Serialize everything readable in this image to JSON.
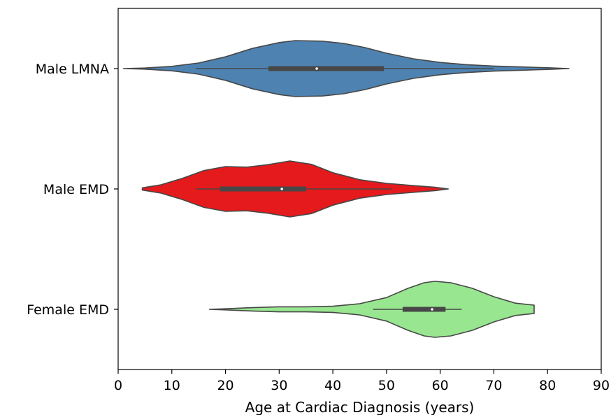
{
  "chart_data": {
    "type": "violin",
    "orientation": "horizontal",
    "title": "",
    "xlabel": "Age at Cardiac Diagnosis (years)",
    "ylabel": "",
    "xlim": [
      0,
      90
    ],
    "xticks": [
      0,
      10,
      20,
      30,
      40,
      50,
      60,
      70,
      80,
      90
    ],
    "grid": false,
    "legend": "none",
    "categories": [
      "Male LMNA",
      "Male EMD",
      "Female EMD"
    ],
    "series": [
      {
        "category": "Male LMNA",
        "color": "#4e82b1",
        "min": 1,
        "max": 84,
        "whisker": [
          14.5,
          70
        ],
        "quartiles": [
          28,
          49.5
        ],
        "median": 37,
        "density": [
          [
            1,
            0.0
          ],
          [
            5,
            0.02
          ],
          [
            10,
            0.08
          ],
          [
            15,
            0.2
          ],
          [
            20,
            0.42
          ],
          [
            25,
            0.72
          ],
          [
            30,
            0.93
          ],
          [
            33,
            1.0
          ],
          [
            38,
            0.98
          ],
          [
            42,
            0.9
          ],
          [
            46,
            0.75
          ],
          [
            50,
            0.55
          ],
          [
            55,
            0.35
          ],
          [
            60,
            0.22
          ],
          [
            65,
            0.14
          ],
          [
            70,
            0.09
          ],
          [
            75,
            0.06
          ],
          [
            80,
            0.03
          ],
          [
            84,
            0.0
          ]
        ]
      },
      {
        "category": "Male EMD",
        "color": "#e41a1c",
        "min": 4.5,
        "max": 61.5,
        "whisker": [
          14.5,
          51
        ],
        "quartiles": [
          19,
          35
        ],
        "median": 30.5,
        "density": [
          [
            4.5,
            0.04
          ],
          [
            8,
            0.15
          ],
          [
            12,
            0.38
          ],
          [
            16,
            0.66
          ],
          [
            20,
            0.8
          ],
          [
            24,
            0.78
          ],
          [
            28,
            0.87
          ],
          [
            32,
            1.0
          ],
          [
            36,
            0.88
          ],
          [
            40,
            0.58
          ],
          [
            45,
            0.33
          ],
          [
            50,
            0.2
          ],
          [
            55,
            0.12
          ],
          [
            59,
            0.06
          ],
          [
            61.5,
            0.0
          ]
        ]
      },
      {
        "category": "Female EMD",
        "color": "#98e690",
        "min": 17,
        "max": 77.5,
        "whisker": [
          47.5,
          64
        ],
        "quartiles": [
          53,
          61
        ],
        "median": 58.5,
        "density": [
          [
            17,
            0.0
          ],
          [
            20,
            0.02
          ],
          [
            25,
            0.06
          ],
          [
            30,
            0.09
          ],
          [
            35,
            0.09
          ],
          [
            40,
            0.11
          ],
          [
            45,
            0.2
          ],
          [
            50,
            0.42
          ],
          [
            54,
            0.75
          ],
          [
            57,
            0.95
          ],
          [
            59,
            1.0
          ],
          [
            62,
            0.95
          ],
          [
            66,
            0.75
          ],
          [
            70,
            0.45
          ],
          [
            74,
            0.22
          ],
          [
            77.5,
            0.15
          ]
        ]
      }
    ]
  }
}
